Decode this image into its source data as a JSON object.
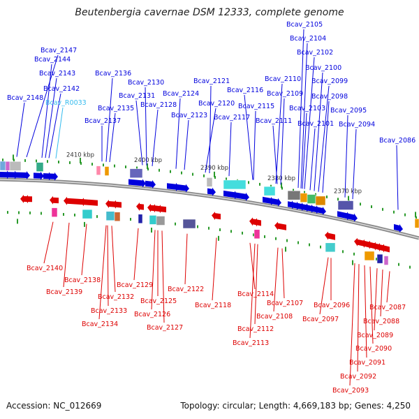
{
  "title": "Beutenbergia cavernae DSM 12333, complete genome",
  "footer": {
    "accession": "Accession: NC_012669",
    "topology": "Topology: circular; Length: 4,669,183 bp; Genes: 4,250"
  },
  "colors": {
    "forward_strand": "#0000dd",
    "reverse_strand": "#dd0000",
    "rna_label": "#33bbee",
    "backbone": "#888888",
    "ticks": "#2a9a2a",
    "scale_text": "#333333"
  },
  "scale_labels": [
    "2410 kbp",
    "2400 kbp",
    "2390 kbp",
    "2380 kbp",
    "2370 kbp"
  ],
  "genes_forward": [
    "Bcav_2148",
    "Bcav_2147",
    "Bcav_2144",
    "Bcav_2143",
    "Bcav_2142",
    "Bcav_R0033",
    "Bcav_2137",
    "Bcav_2136",
    "Bcav_2135",
    "Bcav_2131",
    "Bcav_2130",
    "Bcav_2128",
    "Bcav_2124",
    "Bcav_2123",
    "Bcav_2121",
    "Bcav_2120",
    "Bcav_2117",
    "Bcav_2116",
    "Bcav_2115",
    "Bcav_2111",
    "Bcav_2110",
    "Bcav_2109",
    "Bcav_2105",
    "Bcav_2104",
    "Bcav_2103",
    "Bcav_2102",
    "Bcav_2101",
    "Bcav_2100",
    "Bcav_2099",
    "Bcav_2098",
    "Bcav_2095",
    "Bcav_2094",
    "Bcav_2086"
  ],
  "genes_reverse": [
    "Bcav_2140",
    "Bcav_2139",
    "Bcav_2138",
    "Bcav_2134",
    "Bcav_2133",
    "Bcav_2132",
    "Bcav_2129",
    "Bcav_2127",
    "Bcav_2126",
    "Bcav_2125",
    "Bcav_2122",
    "Bcav_2118",
    "Bcav_2114",
    "Bcav_2113",
    "Bcav_2112",
    "Bcav_2108",
    "Bcav_2107",
    "Bcav_2097",
    "Bcav_2096",
    "Bcav_2093",
    "Bcav_2092",
    "Bcav_2091",
    "Bcav_2090",
    "Bcav_2089",
    "Bcav_2088",
    "Bcav_2087"
  ]
}
